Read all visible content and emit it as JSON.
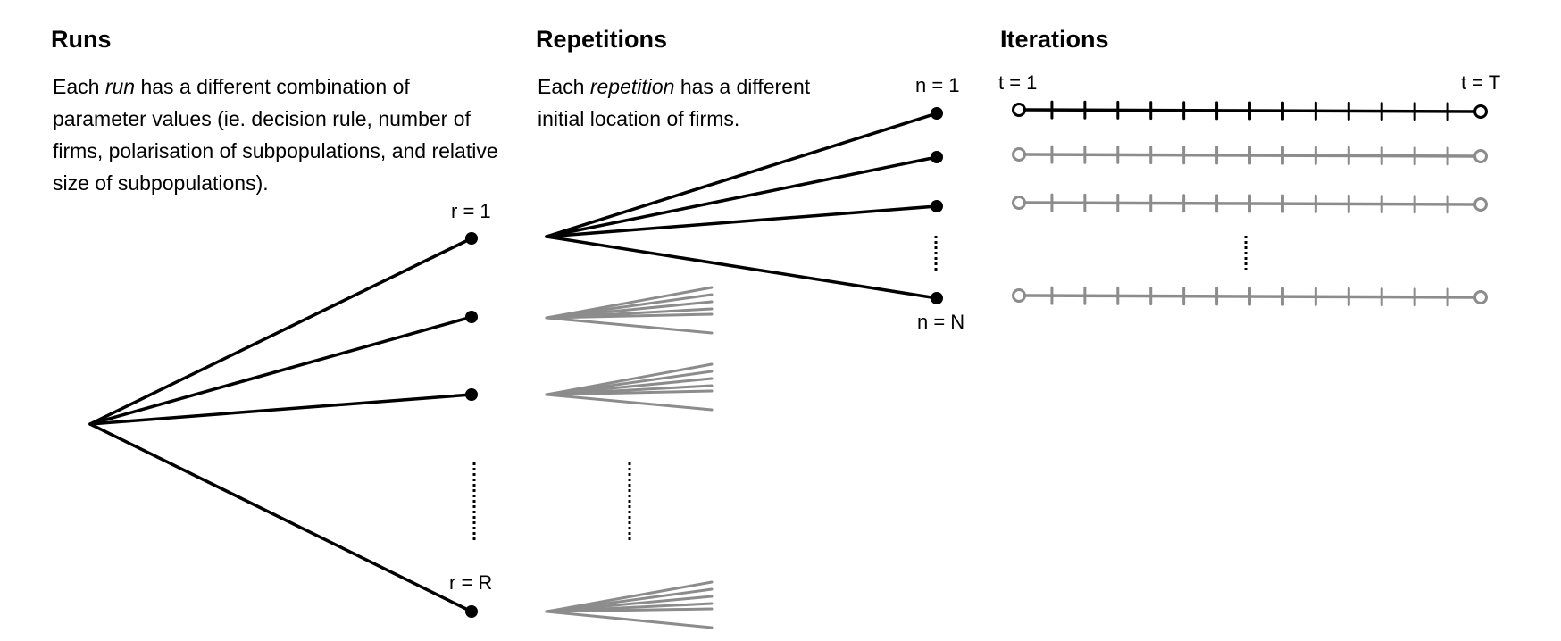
{
  "runs": {
    "heading": "Runs",
    "text_before": "Each ",
    "text_em": "run",
    "text_after": " has a different combination of parameter values (ie. decision rule, number of firms, polarisation of subpopulations, and relative size of subpopulations).",
    "label_first": "r = 1",
    "label_last": "r = R"
  },
  "repetitions": {
    "heading": "Repetitions",
    "text_before": "Each ",
    "text_em": "repetition",
    "text_after": " has a different initial location of firms.",
    "label_first": "n = 1",
    "label_last": "n = N"
  },
  "iterations": {
    "heading": "Iterations",
    "label_start": "t = 1",
    "label_end": "t = T"
  },
  "colors": {
    "primary": "#000000",
    "secondary": "#8c8c8c"
  }
}
